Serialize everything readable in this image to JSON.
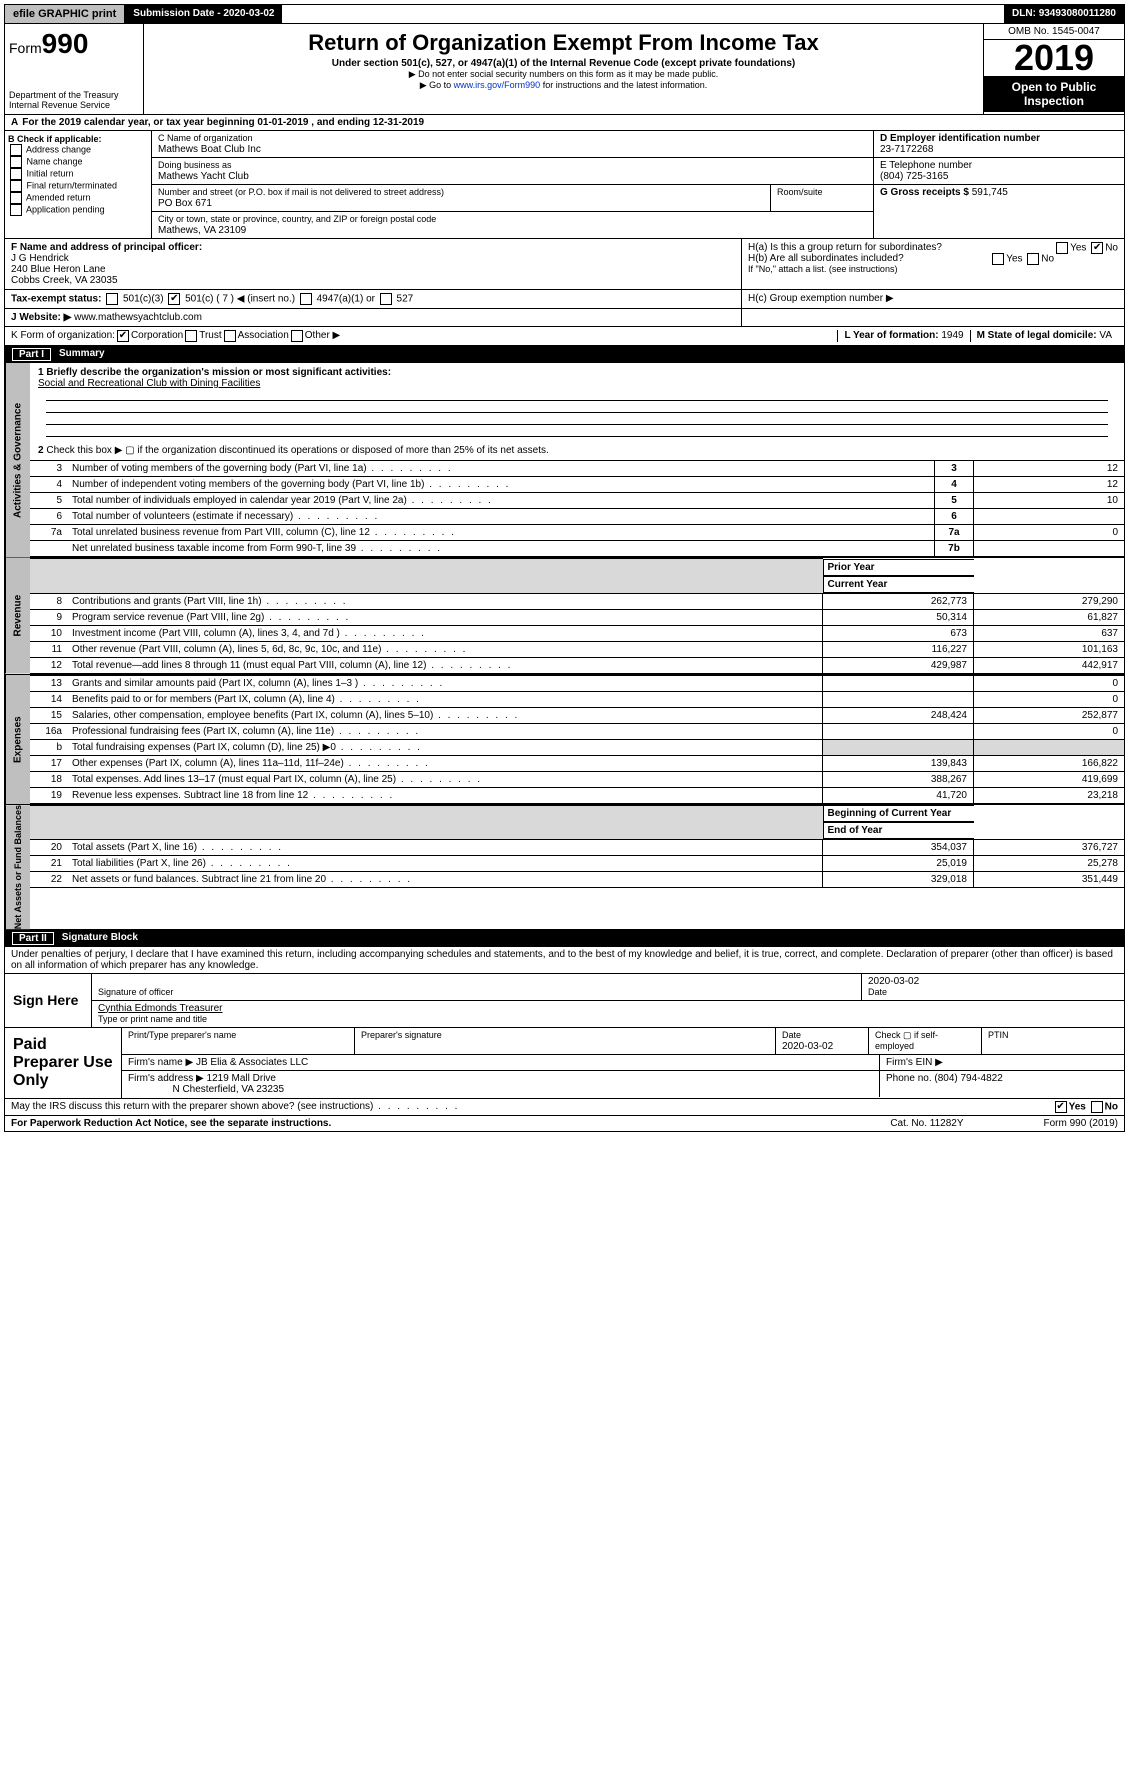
{
  "topbar": {
    "efile": "efile GRAPHIC print",
    "subdate_lbl": "Submission Date - ",
    "subdate": "2020-03-02",
    "dln_lbl": "DLN: ",
    "dln": "93493080011280"
  },
  "header": {
    "form": "Form",
    "num": "990",
    "title": "Return of Organization Exempt From Income Tax",
    "sub1": "Under section 501(c), 527, or 4947(a)(1) of the Internal Revenue Code (except private foundations)",
    "sub2": "▶ Do not enter social security numbers on this form as it may be made public.",
    "sub3": "▶ Go to ",
    "link": "www.irs.gov/Form990",
    "sub3b": " for instructions and the latest information.",
    "dept": "Department of the Treasury\nInternal Revenue Service",
    "omb": "OMB No. 1545-0047",
    "year": "2019",
    "open": "Open to Public\nInspection"
  },
  "period": {
    "text": "For the 2019 calendar year, or tax year beginning 01-01-2019   , and ending 12-31-2019"
  },
  "B": {
    "hdr": "B Check if applicable:",
    "items": [
      "Address change",
      "Name change",
      "Initial return",
      "Final return/terminated",
      "Amended return",
      "Application pending"
    ],
    "A_prefix": "A"
  },
  "C": {
    "name_lbl": "C Name of organization",
    "name": "Mathews Boat Club Inc",
    "dba_lbl": "Doing business as",
    "dba": "Mathews Yacht Club",
    "addr_lbl": "Number and street (or P.O. box if mail is not delivered to street address)",
    "addr": "PO Box 671",
    "room_lbl": "Room/suite",
    "city_lbl": "City or town, state or province, country, and ZIP or foreign postal code",
    "city": "Mathews, VA  23109"
  },
  "D": {
    "lbl": "D Employer identification number",
    "val": "23-7172268"
  },
  "E": {
    "lbl": "E Telephone number",
    "val": "(804) 725-3165"
  },
  "G": {
    "lbl": "G Gross receipts $ ",
    "val": "591,745"
  },
  "F": {
    "lbl": "F  Name and address of principal officer:",
    "name": "J G Hendrick",
    "addr1": "240 Blue Heron Lane",
    "addr2": "Cobbs Creek, VA  23035"
  },
  "H": {
    "a": "H(a)  Is this a group return for subordinates?",
    "b": "H(b)  Are all subordinates included?",
    "bnote": "If \"No,\" attach a list. (see instructions)",
    "c": "H(c)  Group exemption number ▶",
    "yes": "Yes",
    "no": "No"
  },
  "I": {
    "lbl": "Tax-exempt status:",
    "c3": "501(c)(3)",
    "c": "501(c) ( 7 ) ◀ (insert no.)",
    "a1": "4947(a)(1) or",
    "s527": "527"
  },
  "J": {
    "lbl": "Website: ▶ ",
    "val": "www.mathewsyachtclub.com"
  },
  "K": {
    "lbl": "K Form of organization:",
    "corp": "Corporation",
    "trust": "Trust",
    "assoc": "Association",
    "other": "Other ▶"
  },
  "L": {
    "lbl": "L Year of formation: ",
    "val": "1949"
  },
  "M": {
    "lbl": "M State of legal domicile: ",
    "val": "VA"
  },
  "part1": {
    "bar": "Part I",
    "title": "Summary"
  },
  "gov": {
    "lbl": "Activities & Governance",
    "q1": "1  Briefly describe the organization's mission or most significant activities:",
    "mission": "Social and Recreational Club with Dining Facilities",
    "q2": "Check this box ▶ ▢  if the organization discontinued its operations or disposed of more than 25% of its net assets.",
    "rows": [
      {
        "n": "3",
        "t": "Number of voting members of the governing body (Part VI, line 1a)",
        "b": "3",
        "v": "12"
      },
      {
        "n": "4",
        "t": "Number of independent voting members of the governing body (Part VI, line 1b)",
        "b": "4",
        "v": "12"
      },
      {
        "n": "5",
        "t": "Total number of individuals employed in calendar year 2019 (Part V, line 2a)",
        "b": "5",
        "v": "10"
      },
      {
        "n": "6",
        "t": "Total number of volunteers (estimate if necessary)",
        "b": "6",
        "v": ""
      },
      {
        "n": "7a",
        "t": "Total unrelated business revenue from Part VIII, column (C), line 12",
        "b": "7a",
        "v": "0"
      },
      {
        "n": "",
        "t": "Net unrelated business taxable income from Form 990-T, line 39",
        "b": "7b",
        "v": ""
      }
    ]
  },
  "twocol": {
    "prior": "Prior Year",
    "curr": "Current Year"
  },
  "rev": {
    "lbl": "Revenue",
    "rows": [
      {
        "n": "8",
        "t": "Contributions and grants (Part VIII, line 1h)",
        "p": "262,773",
        "c": "279,290"
      },
      {
        "n": "9",
        "t": "Program service revenue (Part VIII, line 2g)",
        "p": "50,314",
        "c": "61,827"
      },
      {
        "n": "10",
        "t": "Investment income (Part VIII, column (A), lines 3, 4, and 7d )",
        "p": "673",
        "c": "637"
      },
      {
        "n": "11",
        "t": "Other revenue (Part VIII, column (A), lines 5, 6d, 8c, 9c, 10c, and 11e)",
        "p": "116,227",
        "c": "101,163"
      },
      {
        "n": "12",
        "t": "Total revenue—add lines 8 through 11 (must equal Part VIII, column (A), line 12)",
        "p": "429,987",
        "c": "442,917"
      }
    ]
  },
  "exp": {
    "lbl": "Expenses",
    "rows": [
      {
        "n": "13",
        "t": "Grants and similar amounts paid (Part IX, column (A), lines 1–3 )",
        "p": "",
        "c": "0"
      },
      {
        "n": "14",
        "t": "Benefits paid to or for members (Part IX, column (A), line 4)",
        "p": "",
        "c": "0"
      },
      {
        "n": "15",
        "t": "Salaries, other compensation, employee benefits (Part IX, column (A), lines 5–10)",
        "p": "248,424",
        "c": "252,877"
      },
      {
        "n": "16a",
        "t": "Professional fundraising fees (Part IX, column (A), line 11e)",
        "p": "",
        "c": "0"
      },
      {
        "n": "b",
        "t": "Total fundraising expenses (Part IX, column (D), line 25) ▶0",
        "p": "grey",
        "c": "grey"
      },
      {
        "n": "17",
        "t": "Other expenses (Part IX, column (A), lines 11a–11d, 11f–24e)",
        "p": "139,843",
        "c": "166,822"
      },
      {
        "n": "18",
        "t": "Total expenses. Add lines 13–17 (must equal Part IX, column (A), line 25)",
        "p": "388,267",
        "c": "419,699"
      },
      {
        "n": "19",
        "t": "Revenue less expenses. Subtract line 18 from line 12",
        "p": "41,720",
        "c": "23,218"
      }
    ]
  },
  "net": {
    "lbl": "Net Assets or Fund Balances",
    "hdr": {
      "p": "Beginning of Current Year",
      "c": "End of Year"
    },
    "rows": [
      {
        "n": "20",
        "t": "Total assets (Part X, line 16)",
        "p": "354,037",
        "c": "376,727"
      },
      {
        "n": "21",
        "t": "Total liabilities (Part X, line 26)",
        "p": "25,019",
        "c": "25,278"
      },
      {
        "n": "22",
        "t": "Net assets or fund balances. Subtract line 21 from line 20",
        "p": "329,018",
        "c": "351,449"
      }
    ]
  },
  "part2": {
    "bar": "Part II",
    "title": "Signature Block"
  },
  "perjury": "Under penalties of perjury, I declare that I have examined this return, including accompanying schedules and statements, and to the best of my knowledge and belief, it is true, correct, and complete. Declaration of preparer (other than officer) is based on all information of which preparer has any knowledge.",
  "sign": {
    "lbl": "Sign Here",
    "sigoff": "Signature of officer",
    "date": "2020-03-02",
    "datel": "Date",
    "name": "Cynthia Edmonds Treasurer",
    "namel": "Type or print name and title"
  },
  "prep": {
    "lbl": "Paid Preparer Use Only",
    "h1": "Print/Type preparer's name",
    "h2": "Preparer's signature",
    "h3": "Date",
    "h3v": "2020-03-02",
    "h4": "Check ▢ if self-employed",
    "h5": "PTIN",
    "fn_lbl": "Firm's name   ▶",
    "fn": "JB Elia & Associates LLC",
    "fein": "Firm's EIN ▶",
    "fa_lbl": "Firm's address ▶",
    "fa1": "1219 Mall Drive",
    "fa2": "N Chesterfield, VA  23235",
    "ph_lbl": "Phone no. ",
    "ph": "(804) 794-4822"
  },
  "discuss": {
    "t": "May the IRS discuss this return with the preparer shown above? (see instructions)",
    "yes": "Yes",
    "no": "No"
  },
  "foot": {
    "l": "For Paperwork Reduction Act Notice, see the separate instructions.",
    "c": "Cat. No. 11282Y",
    "r": "Form 990 (2019)"
  }
}
